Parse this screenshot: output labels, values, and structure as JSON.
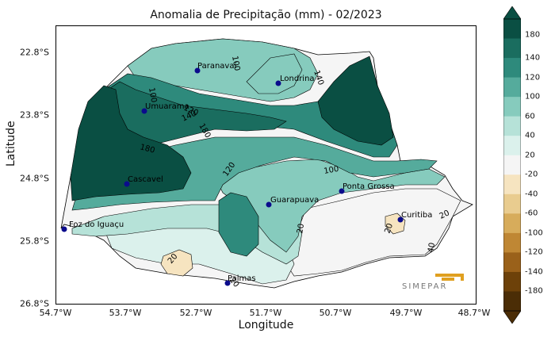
{
  "title": "Anomalia de Precipitação (mm) - 02/2023",
  "xlabel": "Longitude",
  "ylabel": "Latitude",
  "x_ticks": [
    "54.7°W",
    "53.7°W",
    "52.7°W",
    "51.7°W",
    "50.7°W",
    "49.7°W",
    "48.7°W"
  ],
  "y_ticks": [
    "22.8°S",
    "23.8°S",
    "24.8°S",
    "25.8°S",
    "26.8°S"
  ],
  "colorbar": {
    "ticks": [
      "180",
      "140",
      "120",
      "100",
      "60",
      "40",
      "20",
      "-20",
      "-40",
      "-60",
      "-100",
      "-120",
      "-140",
      "-180"
    ],
    "colors": [
      "#0a4f43",
      "#1a6d5f",
      "#2e8a7c",
      "#55ab9c",
      "#86cbbd",
      "#b6e2d8",
      "#dbf1ec",
      "#f5f5f5",
      "#f6e4c0",
      "#e9cc8f",
      "#d7ac5b",
      "#bf8734",
      "#9a611a",
      "#6d4109",
      "#4b2d06"
    ]
  },
  "cities": [
    {
      "name": "Paranavaí"
    },
    {
      "name": "Londrina"
    },
    {
      "name": "Umuarama"
    },
    {
      "name": "Cascavel"
    },
    {
      "name": "Guarapuava"
    },
    {
      "name": "Ponta Grossa"
    },
    {
      "name": "Curitiba"
    },
    {
      "name": "Foz do Iguaçu"
    },
    {
      "name": "Palmas"
    }
  ],
  "contour_labels": [
    "100",
    "140",
    "100",
    "120",
    "140",
    "180",
    "180",
    "120",
    "100",
    "20",
    "20",
    "20",
    "20",
    "20",
    "40"
  ],
  "logo_text": "SIMEPAR"
}
